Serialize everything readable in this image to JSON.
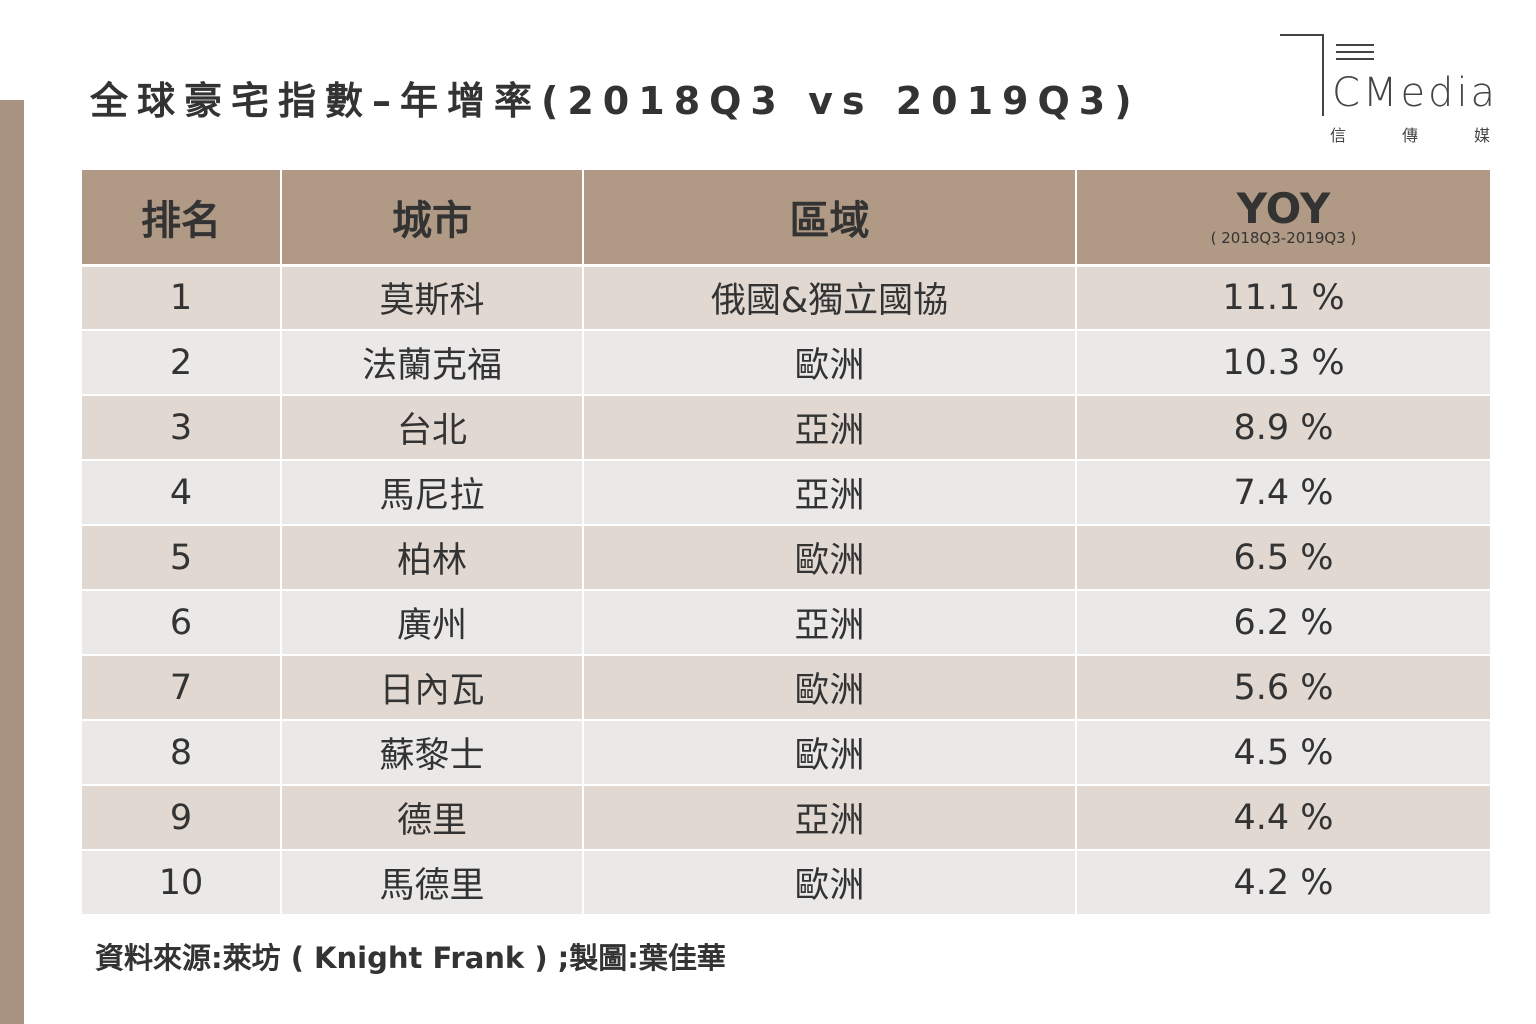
{
  "title": "全球豪宅指數–年增率(2018Q3 vs 2019Q3)",
  "logo": {
    "word": "CMedia",
    "sub": [
      "信",
      "傳",
      "媒"
    ]
  },
  "colors": {
    "header": "#b09a85",
    "row_odd": "#e2d8d2",
    "row_even": "#ebe9e8",
    "side_bar": "#a89382"
  },
  "chart_data": {
    "type": "table",
    "columns": [
      "排名",
      "城市",
      "區域",
      "YOY"
    ],
    "yoy_subtitle": "( 2018Q3-2019Q3 )",
    "rows": [
      {
        "rank": "1",
        "city": "莫斯科",
        "region": "俄國&獨立國協",
        "yoy": "11.1 %"
      },
      {
        "rank": "2",
        "city": "法蘭克福",
        "region": "歐洲",
        "yoy": "10.3 %"
      },
      {
        "rank": "3",
        "city": "台北",
        "region": "亞洲",
        "yoy": "8.9 %"
      },
      {
        "rank": "4",
        "city": "馬尼拉",
        "region": "亞洲",
        "yoy": "7.4 %"
      },
      {
        "rank": "5",
        "city": "柏林",
        "region": "歐洲",
        "yoy": "6.5 %"
      },
      {
        "rank": "6",
        "city": "廣州",
        "region": "亞洲",
        "yoy": "6.2 %"
      },
      {
        "rank": "7",
        "city": "日內瓦",
        "region": "歐洲",
        "yoy": "5.6 %"
      },
      {
        "rank": "8",
        "city": "蘇黎士",
        "region": "歐洲",
        "yoy": "4.5 %"
      },
      {
        "rank": "9",
        "city": "德里",
        "region": "亞洲",
        "yoy": "4.4 %"
      },
      {
        "rank": "10",
        "city": "馬德里",
        "region": "歐洲",
        "yoy": "4.2 %"
      }
    ]
  },
  "source": "資料來源:萊坊 ( Knight Frank ) ;製圖:葉佳華"
}
